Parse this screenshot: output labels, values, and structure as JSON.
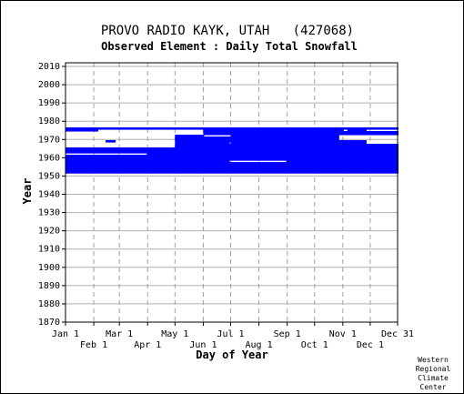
{
  "chart_data": {
    "type": "scatter",
    "title": "PROVO RADIO KAYK, UTAH   (427068)",
    "subtitle": "Observed Element : Daily Total Snowfall",
    "xlabel": "Day of Year",
    "ylabel": "Year",
    "credit": [
      "Western",
      "Regional",
      "Climate",
      "Center"
    ],
    "xlim": [
      1,
      365
    ],
    "ylim": [
      1870,
      2012
    ],
    "x_ticks_top_row": [
      {
        "day": 1,
        "label": "Jan 1"
      },
      {
        "day": 60,
        "label": "Mar 1"
      },
      {
        "day": 121,
        "label": "May 1"
      },
      {
        "day": 182,
        "label": "Jul 1"
      },
      {
        "day": 244,
        "label": "Sep 1"
      },
      {
        "day": 305,
        "label": "Nov 1"
      },
      {
        "day": 365,
        "label": "Dec 31"
      }
    ],
    "x_ticks_bottom_row": [
      {
        "day": 32,
        "label": "Feb 1"
      },
      {
        "day": 91,
        "label": "Apr 1"
      },
      {
        "day": 152,
        "label": "Jun 1"
      },
      {
        "day": 213,
        "label": "Aug 1"
      },
      {
        "day": 274,
        "label": "Oct 1"
      },
      {
        "day": 335,
        "label": "Dec 1"
      }
    ],
    "y_ticks": [
      1870,
      1880,
      1890,
      1900,
      1910,
      1920,
      1930,
      1940,
      1950,
      1960,
      1970,
      1980,
      1990,
      2000,
      2010
    ],
    "grid": true,
    "grid_style": "dashed-vertical, solid-horizontal",
    "series": [
      {
        "color": "#0000ff",
        "description_note": "horizontal runs of observed days per year",
        "runs": [
          {
            "year": 1976,
            "start": 1,
            "end": 365
          },
          {
            "year": 1975,
            "start": 1,
            "end": 36
          },
          {
            "year": 1975,
            "start": 152,
            "end": 305
          },
          {
            "year": 1975,
            "start": 310,
            "end": 330
          },
          {
            "year": 1974,
            "start": 152,
            "end": 365
          },
          {
            "year": 1973,
            "start": 152,
            "end": 365
          },
          {
            "year": 1972,
            "start": 121,
            "end": 152
          },
          {
            "year": 1972,
            "start": 182,
            "end": 300
          },
          {
            "year": 1971,
            "start": 121,
            "end": 300
          },
          {
            "year": 1970,
            "start": 121,
            "end": 300
          },
          {
            "year": 1969,
            "start": 45,
            "end": 55
          },
          {
            "year": 1969,
            "start": 121,
            "end": 330
          },
          {
            "year": 1968,
            "start": 121,
            "end": 180
          },
          {
            "year": 1968,
            "start": 182,
            "end": 330
          },
          {
            "year": 1967,
            "start": 121,
            "end": 365
          },
          {
            "year": 1966,
            "start": 121,
            "end": 365
          },
          {
            "year": 1965,
            "start": 1,
            "end": 365
          },
          {
            "year": 1964,
            "start": 1,
            "end": 365
          },
          {
            "year": 1963,
            "start": 1,
            "end": 365
          },
          {
            "year": 1962,
            "start": 90,
            "end": 365
          },
          {
            "year": 1961,
            "start": 1,
            "end": 365
          },
          {
            "year": 1960,
            "start": 1,
            "end": 365
          },
          {
            "year": 1959,
            "start": 1,
            "end": 365
          },
          {
            "year": 1958,
            "start": 1,
            "end": 180
          },
          {
            "year": 1958,
            "start": 243,
            "end": 365
          },
          {
            "year": 1957,
            "start": 1,
            "end": 365
          },
          {
            "year": 1956,
            "start": 1,
            "end": 365
          },
          {
            "year": 1955,
            "start": 1,
            "end": 365
          },
          {
            "year": 1954,
            "start": 1,
            "end": 365
          },
          {
            "year": 1953,
            "start": 1,
            "end": 365
          },
          {
            "year": 1952,
            "start": 1,
            "end": 365
          }
        ]
      }
    ]
  }
}
